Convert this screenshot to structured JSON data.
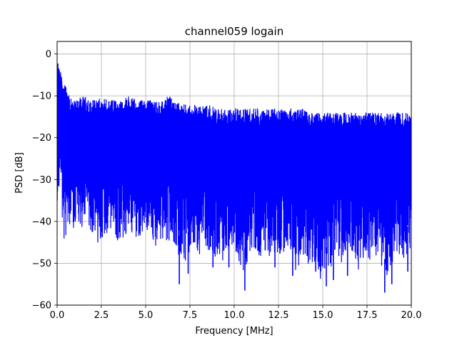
{
  "chart_data": {
    "type": "line",
    "title": "channel059 logain",
    "xlabel": "Frequency [MHz]",
    "ylabel": "PSD [dB]",
    "xlim": [
      0,
      20
    ],
    "ylim": [
      -60,
      3
    ],
    "xticks": [
      0,
      2.5,
      5,
      7.5,
      10,
      12.5,
      15,
      17.5,
      20
    ],
    "xtick_labels": [
      "0.0",
      "2.5",
      "5.0",
      "7.5",
      "10.0",
      "12.5",
      "15.0",
      "17.5",
      "20.0"
    ],
    "yticks": [
      0,
      -10,
      -20,
      -30,
      -40,
      -50,
      -60
    ],
    "ytick_labels": [
      "0",
      "−10",
      "−20",
      "−30",
      "−40",
      "−50",
      "−60"
    ],
    "grid": true,
    "series": [
      {
        "color": "#0000ff",
        "x": [
          0.0,
          0.1,
          0.2,
          0.3,
          0.5,
          0.75,
          1.0,
          1.5,
          2.0,
          2.5,
          3.0,
          3.5,
          4.0,
          4.5,
          5.0,
          5.5,
          6.0,
          6.3,
          6.5,
          7.0,
          7.5,
          8.0,
          8.5,
          9.0,
          9.5,
          10.0,
          10.5,
          11.0,
          11.5,
          12.0,
          12.5,
          13.0,
          13.5,
          14.0,
          14.5,
          15.0,
          15.5,
          16.0,
          16.5,
          17.0,
          17.5,
          18.0,
          18.5,
          19.0,
          19.5,
          20.0
        ],
        "envelope_upper": [
          -1,
          -2,
          -4,
          -6,
          -8,
          -10,
          -11,
          -10,
          -11,
          -10,
          -11,
          -11,
          -10,
          -11,
          -11,
          -11,
          -11,
          -9,
          -11,
          -12,
          -12,
          -12,
          -12,
          -13,
          -13,
          -13,
          -13,
          -13,
          -13,
          -13,
          -13,
          -13,
          -13,
          -13,
          -14,
          -14,
          -14,
          -14,
          -14,
          -14,
          -14,
          -14,
          -14,
          -14,
          -14,
          -14
        ],
        "envelope_lower": [
          -37,
          -35,
          -38,
          -44,
          -45,
          -44,
          -43,
          -42,
          -45,
          -46,
          -45,
          -47,
          -45,
          -46,
          -45,
          -46,
          -46,
          -47,
          -45,
          -53,
          -50,
          -48,
          -48,
          -51,
          -49,
          -47,
          -56,
          -48,
          -50,
          -49,
          -51,
          -48,
          -52,
          -50,
          -52,
          -55,
          -53,
          -50,
          -48,
          -52,
          -49,
          -51,
          -57,
          -50,
          -51,
          -48
        ],
        "spike_minima": [
          [
            6.9,
            -55
          ],
          [
            7.4,
            -52.5
          ],
          [
            8.8,
            -51
          ],
          [
            9.7,
            -51
          ],
          [
            10.6,
            -56.5
          ],
          [
            12.3,
            -51
          ],
          [
            13.3,
            -53
          ],
          [
            14.6,
            -52
          ],
          [
            15.2,
            -55.5
          ],
          [
            15.6,
            -54
          ],
          [
            16.4,
            -53
          ],
          [
            18.5,
            -57
          ],
          [
            18.9,
            -55
          ],
          [
            19.8,
            -52
          ]
        ]
      }
    ]
  }
}
